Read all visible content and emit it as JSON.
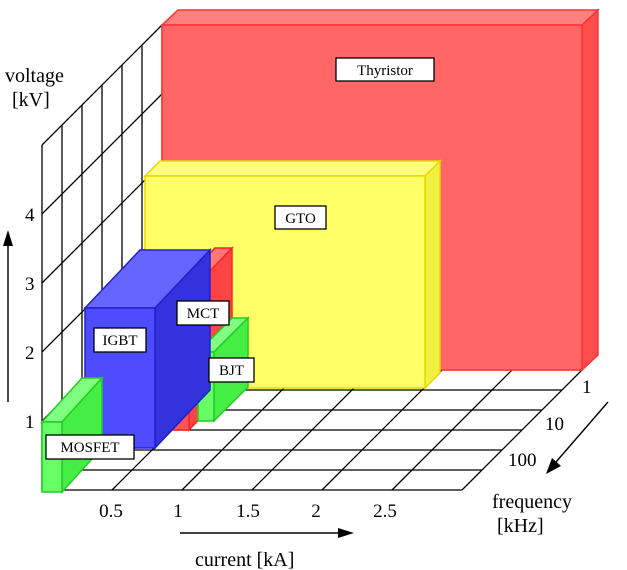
{
  "axes": {
    "voltage": {
      "title_line1": "voltage",
      "title_line2": "[kV]",
      "ticks": [
        "1",
        "2",
        "3",
        "4"
      ]
    },
    "current": {
      "title": "current [kA]",
      "ticks": [
        "0.5",
        "1",
        "1.5",
        "2",
        "2.5"
      ]
    },
    "frequency": {
      "title_line1": "frequency",
      "title_line2": "[kHz]",
      "ticks": [
        "1",
        "10",
        "100"
      ]
    }
  },
  "devices": [
    {
      "label": "Thyristor",
      "color": "#ff6666",
      "edge": "#ff3333"
    },
    {
      "label": "GTO",
      "color": "#ffff66",
      "edge": "#e6d800"
    },
    {
      "label": "MCT",
      "color": "#ff5555",
      "edge": "#ff2222"
    },
    {
      "label": "IGBT",
      "color": "#4d4dff",
      "edge": "#2020cc"
    },
    {
      "label": "BJT",
      "color": "#66ff66",
      "edge": "#22cc22"
    },
    {
      "label": "MOSFET",
      "color": "#66ff66",
      "edge": "#22cc22"
    }
  ]
}
